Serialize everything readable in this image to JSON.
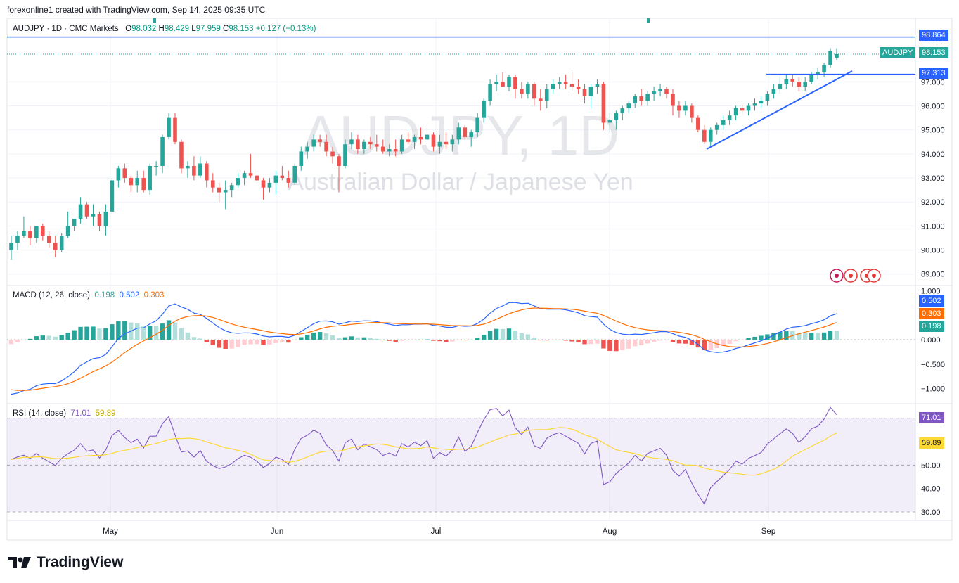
{
  "header": {
    "created_by": "forexonline1 created with TradingView.com, Sep 14, 2025 09:35 UTC"
  },
  "symbol_line": {
    "symbol": "AUDJPY · 1D · CMC Markets",
    "o_label": "O",
    "o_val": "98.032",
    "h_label": "H",
    "h_val": "98.429",
    "l_label": "L",
    "l_val": "97.959",
    "c_label": "C",
    "c_val": "98.153",
    "change": "+0.127 (+0.13%)"
  },
  "watermark": {
    "title": "AUDJPY, 1D",
    "subtitle": "Australian Dollar / Japanese Yen"
  },
  "price_tags": {
    "resistance": "98.864",
    "symbol": "AUDJPY",
    "last": "98.153",
    "support": "97.313",
    "top_partial": "98.800"
  },
  "macd": {
    "label": "MACD (12, 26, close)",
    "hist": "0.198",
    "macd": "0.502",
    "signal": "0.303",
    "axis": [
      "1.000",
      "0.500",
      "0.000",
      "−0.500",
      "−1.000"
    ]
  },
  "rsi": {
    "label": "RSI (14, close)",
    "rsi": "71.01",
    "ma": "59.89",
    "axis": [
      "70.00",
      "60.00",
      "50.00",
      "40.00",
      "30.00"
    ]
  },
  "colors": {
    "up": "#26a69a",
    "down": "#ef5350",
    "blue": "#2962ff",
    "orange": "#ff6d00",
    "rsi_line": "#7e57c2",
    "rsi_ma": "#fdd835"
  },
  "footer": {
    "brand": "TradingView"
  },
  "chart_data": {
    "type": "candlestick",
    "title": "AUDJPY, 1D",
    "price_axis": [
      "98.800",
      "97.000",
      "96.000",
      "95.000",
      "94.000",
      "93.000",
      "92.000",
      "91.000",
      "90.000",
      "89.000"
    ],
    "time_axis": [
      "May",
      "Jun",
      "Jul",
      "Aug",
      "Sep"
    ],
    "price_range": [
      88.6,
      99.2
    ],
    "horizontal_lines": [
      98.864,
      97.313
    ],
    "trendline": {
      "from": [
        94.2,
        "Aug 19"
      ],
      "to": [
        97.5,
        "Sep 15"
      ]
    },
    "candles_ohlc": [
      [
        90.0,
        90.6,
        89.6,
        90.3
      ],
      [
        90.3,
        90.8,
        90.0,
        90.6
      ],
      [
        90.6,
        91.4,
        90.5,
        90.8
      ],
      [
        90.8,
        91.0,
        90.2,
        90.5
      ],
      [
        90.5,
        91.0,
        90.3,
        91.0
      ],
      [
        91.0,
        91.1,
        90.4,
        90.6
      ],
      [
        90.6,
        90.8,
        90.1,
        90.3
      ],
      [
        90.3,
        90.6,
        89.7,
        90.0
      ],
      [
        90.0,
        90.7,
        89.9,
        90.6
      ],
      [
        90.6,
        91.6,
        90.5,
        91.0
      ],
      [
        91.0,
        91.3,
        90.8,
        91.3
      ],
      [
        91.3,
        92.2,
        91.1,
        91.9
      ],
      [
        91.9,
        92.0,
        91.3,
        91.4
      ],
      [
        91.4,
        91.9,
        91.0,
        91.5
      ],
      [
        91.5,
        91.6,
        90.8,
        91.0
      ],
      [
        91.0,
        91.9,
        90.6,
        91.6
      ],
      [
        91.6,
        93.0,
        91.5,
        92.9
      ],
      [
        92.9,
        93.5,
        92.6,
        93.4
      ],
      [
        93.4,
        93.6,
        92.8,
        93.0
      ],
      [
        93.0,
        93.1,
        92.4,
        92.7
      ],
      [
        92.7,
        93.3,
        92.4,
        93.0
      ],
      [
        93.0,
        93.3,
        92.4,
        92.5
      ],
      [
        92.5,
        93.6,
        92.3,
        93.5
      ],
      [
        93.5,
        93.7,
        93.1,
        93.5
      ],
      [
        93.5,
        94.8,
        93.2,
        94.7
      ],
      [
        94.7,
        95.7,
        94.6,
        95.5
      ],
      [
        95.5,
        95.7,
        94.4,
        94.5
      ],
      [
        94.5,
        94.6,
        93.2,
        93.4
      ],
      [
        93.4,
        93.7,
        93.0,
        93.5
      ],
      [
        93.5,
        93.9,
        92.9,
        93.1
      ],
      [
        93.1,
        93.9,
        93.0,
        93.6
      ],
      [
        93.6,
        93.7,
        92.6,
        92.9
      ],
      [
        92.9,
        93.2,
        92.4,
        92.6
      ],
      [
        92.6,
        92.8,
        92.0,
        92.4
      ],
      [
        92.4,
        92.9,
        91.7,
        92.5
      ],
      [
        92.5,
        92.8,
        92.2,
        92.7
      ],
      [
        92.7,
        93.2,
        92.6,
        93.0
      ],
      [
        93.0,
        93.3,
        92.7,
        93.2
      ],
      [
        93.2,
        94.0,
        93.0,
        93.1
      ],
      [
        93.1,
        93.3,
        92.7,
        92.9
      ],
      [
        92.9,
        93.0,
        92.1,
        92.6
      ],
      [
        92.6,
        93.0,
        92.4,
        92.8
      ],
      [
        92.8,
        93.3,
        92.3,
        93.1
      ],
      [
        93.1,
        93.5,
        92.9,
        93.0
      ],
      [
        93.0,
        93.3,
        92.6,
        92.8
      ],
      [
        92.8,
        93.6,
        92.7,
        93.5
      ],
      [
        93.5,
        94.3,
        93.3,
        94.1
      ],
      [
        94.1,
        94.5,
        93.8,
        94.3
      ],
      [
        94.3,
        94.8,
        94.1,
        94.6
      ],
      [
        94.6,
        94.8,
        94.3,
        94.5
      ],
      [
        94.5,
        94.8,
        93.9,
        94.1
      ],
      [
        94.1,
        94.3,
        93.6,
        93.9
      ],
      [
        93.9,
        94.0,
        92.4,
        93.5
      ],
      [
        93.5,
        94.6,
        93.4,
        94.4
      ],
      [
        94.4,
        94.9,
        94.2,
        94.6
      ],
      [
        94.6,
        94.8,
        94.0,
        94.2
      ],
      [
        94.2,
        94.6,
        94.0,
        94.5
      ],
      [
        94.5,
        94.7,
        94.2,
        94.4
      ],
      [
        94.4,
        94.8,
        94.1,
        94.3
      ],
      [
        94.3,
        94.6,
        94.0,
        94.1
      ],
      [
        94.1,
        94.4,
        93.9,
        94.2
      ],
      [
        94.2,
        94.6,
        93.9,
        94.1
      ],
      [
        94.1,
        94.8,
        94.0,
        94.6
      ],
      [
        94.6,
        94.9,
        94.4,
        94.5
      ],
      [
        94.5,
        94.8,
        94.2,
        94.7
      ],
      [
        94.7,
        95.1,
        94.4,
        94.6
      ],
      [
        94.6,
        95.1,
        94.4,
        94.8
      ],
      [
        94.8,
        94.9,
        94.1,
        94.3
      ],
      [
        94.3,
        94.8,
        94.0,
        94.5
      ],
      [
        94.5,
        94.9,
        94.2,
        94.4
      ],
      [
        94.4,
        94.8,
        94.1,
        94.6
      ],
      [
        94.6,
        95.3,
        94.4,
        95.1
      ],
      [
        95.1,
        95.2,
        94.6,
        94.7
      ],
      [
        94.7,
        95.0,
        94.3,
        94.9
      ],
      [
        94.9,
        95.7,
        94.7,
        95.5
      ],
      [
        95.5,
        96.3,
        95.3,
        96.2
      ],
      [
        96.2,
        97.1,
        96.0,
        96.9
      ],
      [
        96.9,
        97.3,
        96.6,
        97.0
      ],
      [
        97.0,
        97.4,
        96.8,
        96.8
      ],
      [
        96.8,
        97.3,
        96.6,
        97.2
      ],
      [
        97.2,
        97.3,
        96.3,
        96.7
      ],
      [
        96.7,
        97.0,
        96.3,
        96.5
      ],
      [
        96.5,
        97.0,
        96.3,
        96.9
      ],
      [
        96.9,
        97.0,
        96.0,
        96.3
      ],
      [
        96.3,
        96.7,
        95.8,
        96.2
      ],
      [
        96.2,
        96.9,
        95.9,
        96.7
      ],
      [
        96.7,
        97.1,
        96.5,
        96.9
      ],
      [
        96.9,
        97.2,
        96.7,
        97.0
      ],
      [
        97.0,
        97.3,
        96.7,
        96.9
      ],
      [
        96.9,
        97.4,
        96.6,
        96.8
      ],
      [
        96.8,
        97.1,
        96.5,
        96.7
      ],
      [
        96.7,
        96.9,
        96.1,
        96.4
      ],
      [
        96.4,
        96.9,
        95.9,
        96.8
      ],
      [
        96.8,
        97.1,
        96.5,
        96.9
      ],
      [
        96.9,
        97.0,
        95.0,
        95.3
      ],
      [
        95.3,
        95.7,
        94.9,
        95.4
      ],
      [
        95.4,
        95.8,
        95.0,
        95.7
      ],
      [
        95.7,
        96.0,
        95.4,
        95.9
      ],
      [
        95.9,
        96.2,
        95.7,
        96.1
      ],
      [
        96.1,
        96.5,
        95.9,
        96.4
      ],
      [
        96.4,
        96.7,
        96.0,
        96.2
      ],
      [
        96.2,
        96.6,
        96.0,
        96.5
      ],
      [
        96.5,
        96.8,
        96.2,
        96.6
      ],
      [
        96.6,
        96.9,
        96.4,
        96.7
      ],
      [
        96.7,
        96.8,
        96.3,
        96.5
      ],
      [
        96.5,
        96.7,
        95.6,
        96.0
      ],
      [
        96.0,
        96.2,
        95.5,
        95.8
      ],
      [
        95.8,
        96.2,
        95.6,
        96.0
      ],
      [
        96.0,
        96.1,
        95.3,
        95.5
      ],
      [
        95.5,
        95.6,
        94.9,
        95.0
      ],
      [
        95.0,
        95.2,
        94.4,
        94.5
      ],
      [
        94.5,
        95.1,
        94.3,
        95.0
      ],
      [
        95.0,
        95.3,
        94.8,
        95.2
      ],
      [
        95.2,
        95.6,
        95.0,
        95.4
      ],
      [
        95.4,
        95.8,
        95.2,
        95.6
      ],
      [
        95.6,
        96.0,
        95.4,
        95.9
      ],
      [
        95.9,
        96.1,
        95.6,
        95.8
      ],
      [
        95.8,
        96.1,
        95.6,
        96.0
      ],
      [
        96.0,
        96.3,
        95.8,
        96.1
      ],
      [
        96.1,
        96.4,
        95.9,
        96.2
      ],
      [
        96.2,
        96.6,
        96.0,
        96.5
      ],
      [
        96.5,
        96.9,
        96.3,
        96.7
      ],
      [
        96.7,
        97.2,
        96.5,
        96.9
      ],
      [
        96.9,
        97.3,
        96.7,
        97.1
      ],
      [
        97.1,
        97.3,
        96.8,
        97.0
      ],
      [
        97.0,
        97.2,
        96.6,
        96.8
      ],
      [
        96.8,
        97.2,
        96.6,
        97.0
      ],
      [
        97.0,
        97.4,
        96.9,
        97.3
      ],
      [
        97.3,
        97.6,
        97.1,
        97.4
      ],
      [
        97.4,
        97.8,
        97.2,
        97.7
      ],
      [
        97.7,
        98.4,
        97.6,
        98.3
      ],
      [
        98.0,
        98.4,
        97.9,
        98.153
      ]
    ],
    "macd": {
      "values_note": "MACD and signal lines from roughly -1.1 in April up to 0.55 mid-May, ~0.7 in July, below zero in Aug, 0.502 / 0.303 at the end",
      "last_macd": 0.502,
      "last_signal": 0.303,
      "last_hist": 0.198
    },
    "rsi": {
      "last": 71.01,
      "ma": 59.89,
      "levels": [
        70,
        50,
        30
      ]
    }
  }
}
